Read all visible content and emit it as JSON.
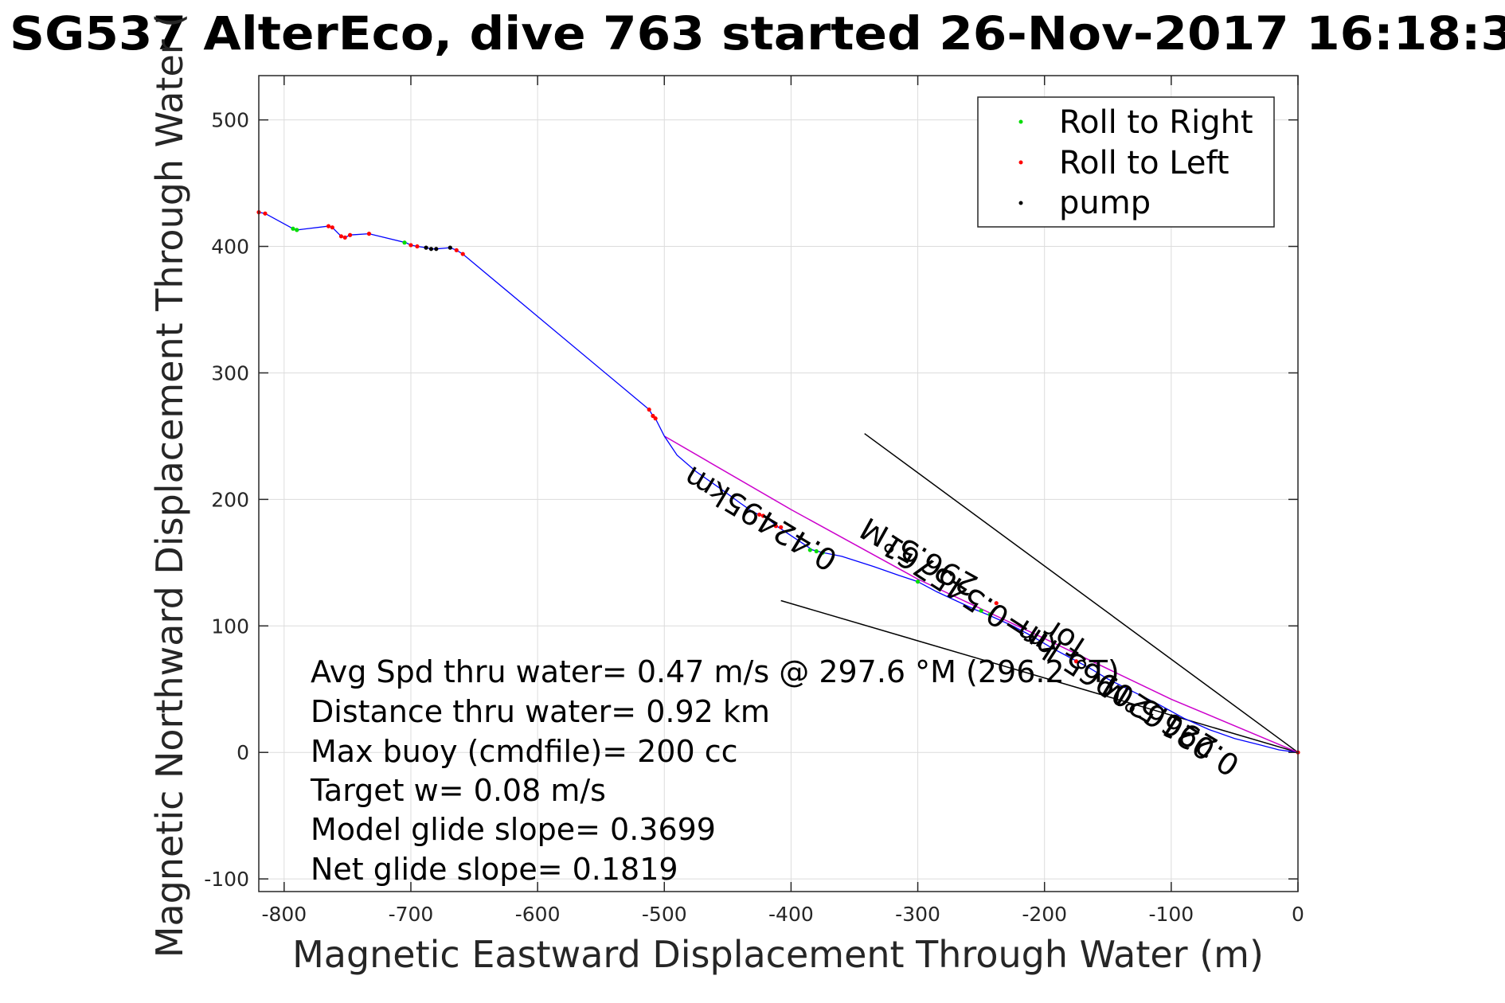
{
  "chart_data": {
    "type": "scatter",
    "title": "SG537 AlterEco, dive 763 started 26-Nov-2017 16:18:3",
    "xlabel": "Magnetic Eastward Displacement Through Water (m)",
    "ylabel": "Magnetic Northward Displacement Through Water (",
    "xlim": [
      -820,
      0
    ],
    "ylim": [
      -110,
      535
    ],
    "xticks": [
      -800,
      -700,
      -600,
      -500,
      -400,
      -300,
      -200,
      -100,
      0
    ],
    "xtick_labels": [
      "-800",
      "-700",
      "-600",
      "-500",
      "-400",
      "-300",
      "-200",
      "-100",
      "0"
    ],
    "yticks": [
      -100,
      0,
      100,
      200,
      300,
      400,
      500
    ],
    "ytick_labels": [
      "-100",
      "0",
      "100",
      "200",
      "300",
      "400",
      "500"
    ],
    "grid": true,
    "legend_position": "top-right",
    "legend": [
      {
        "label": "Roll to Right",
        "color": "#00dd00"
      },
      {
        "label": "Roll to Left",
        "color": "#ff0000"
      },
      {
        "label": "pump",
        "color": "#000000"
      }
    ],
    "track": {
      "color": "#0000ff",
      "points": [
        [
          -820,
          427
        ],
        [
          -815,
          426
        ],
        [
          -793,
          414
        ],
        [
          -790,
          413
        ],
        [
          -765,
          416
        ],
        [
          -762,
          415
        ],
        [
          -755,
          408
        ],
        [
          -752,
          407
        ],
        [
          -748,
          409
        ],
        [
          -733,
          410
        ],
        [
          -704,
          403
        ],
        [
          -700,
          401
        ],
        [
          -695,
          400
        ],
        [
          -688,
          399
        ],
        [
          -684,
          398
        ],
        [
          -680,
          398
        ],
        [
          -669,
          399
        ],
        [
          -664,
          397
        ],
        [
          -659,
          394
        ],
        [
          -512,
          271
        ],
        [
          -509,
          266
        ],
        [
          -507,
          264
        ],
        [
          -500,
          250
        ],
        [
          -490,
          235
        ],
        [
          -475,
          222
        ],
        [
          -455,
          208
        ],
        [
          -440,
          197
        ],
        [
          -430,
          190
        ],
        [
          -420,
          186
        ],
        [
          -410,
          178
        ],
        [
          -395,
          168
        ],
        [
          -383,
          160
        ],
        [
          -375,
          158
        ],
        [
          -360,
          155
        ],
        [
          -335,
          147
        ],
        [
          -315,
          140
        ],
        [
          -300,
          135
        ],
        [
          -285,
          127
        ],
        [
          -270,
          120
        ],
        [
          -255,
          113
        ],
        [
          -245,
          109
        ],
        [
          -225,
          100
        ],
        [
          -210,
          92
        ],
        [
          -195,
          83
        ],
        [
          -180,
          75
        ],
        [
          -165,
          67
        ],
        [
          -150,
          58
        ],
        [
          -130,
          48
        ],
        [
          -110,
          38
        ],
        [
          -90,
          27
        ],
        [
          -70,
          18
        ],
        [
          -50,
          11
        ],
        [
          -30,
          6
        ],
        [
          -15,
          2
        ],
        [
          0,
          0
        ]
      ]
    },
    "roll_right": [
      [
        -793,
        414
      ],
      [
        -790,
        413
      ],
      [
        -705,
        403
      ],
      [
        -385,
        160
      ],
      [
        -380,
        159
      ],
      [
        -375,
        158
      ],
      [
        -250,
        112
      ],
      [
        -243,
        109
      ],
      [
        -300,
        135
      ]
    ],
    "roll_left": [
      [
        -820,
        427
      ],
      [
        -815,
        426
      ],
      [
        -765,
        416
      ],
      [
        -762,
        415
      ],
      [
        -755,
        408
      ],
      [
        -752,
        407
      ],
      [
        -748,
        409
      ],
      [
        -733,
        410
      ],
      [
        -700,
        401
      ],
      [
        -695,
        400
      ],
      [
        -664,
        397
      ],
      [
        -659,
        394
      ],
      [
        -512,
        271
      ],
      [
        -509,
        266
      ],
      [
        -507,
        264
      ],
      [
        -425,
        188
      ],
      [
        -422,
        187
      ],
      [
        -412,
        179
      ],
      [
        -408,
        178
      ],
      [
        -238,
        118
      ],
      [
        -175,
        72
      ],
      [
        0,
        0
      ]
    ],
    "pump": [
      [
        -688,
        399
      ],
      [
        -684,
        398
      ],
      [
        -680,
        398
      ],
      [
        -669,
        399
      ],
      [
        -210,
        92
      ]
    ],
    "heading_line": {
      "color": "#cc00cc",
      "points": [
        [
          -500,
          250
        ],
        [
          -400,
          192
        ],
        [
          -300,
          137
        ],
        [
          -200,
          90
        ],
        [
          -100,
          42
        ],
        [
          0,
          0
        ]
      ]
    },
    "reference_lines": [
      {
        "points": [
          [
            -342,
            252
          ],
          [
            0,
            0
          ]
        ],
        "color": "#000000"
      },
      {
        "points": [
          [
            -408,
            120
          ],
          [
            0,
            0
          ]
        ],
        "color": "#000000"
      }
    ],
    "rotated_labels": [
      {
        "text": "296.5°M",
        "at": [
          -295,
          162
        ],
        "angle": 209
      },
      {
        "text": "296.5°M",
        "at": [
          -105,
          35
        ],
        "angle": 211
      },
      {
        "text": "0.42495km",
        "at": [
          -420,
          192
        ],
        "angle": 211
      },
      {
        "text": "0.021620965 km",
        "at": [
          -130,
          50
        ],
        "angle": 213
      },
      {
        "text": "hr=0.545761",
        "at": [
          -255,
          130
        ],
        "angle": 213
      },
      {
        "text": "for",
        "at": [
          -180,
          97
        ],
        "angle": 213
      }
    ],
    "annotations": [
      "Avg Spd thru water=  0.47 m/s @ 297.6 °M (296.2 °T)",
      "Distance thru water=  0.92 km",
      "Max buoy (cmdfile)= 200 cc",
      "Target w= 0.08 m/s",
      "Model glide slope= 0.3699",
      "Net glide slope= 0.1819"
    ]
  }
}
